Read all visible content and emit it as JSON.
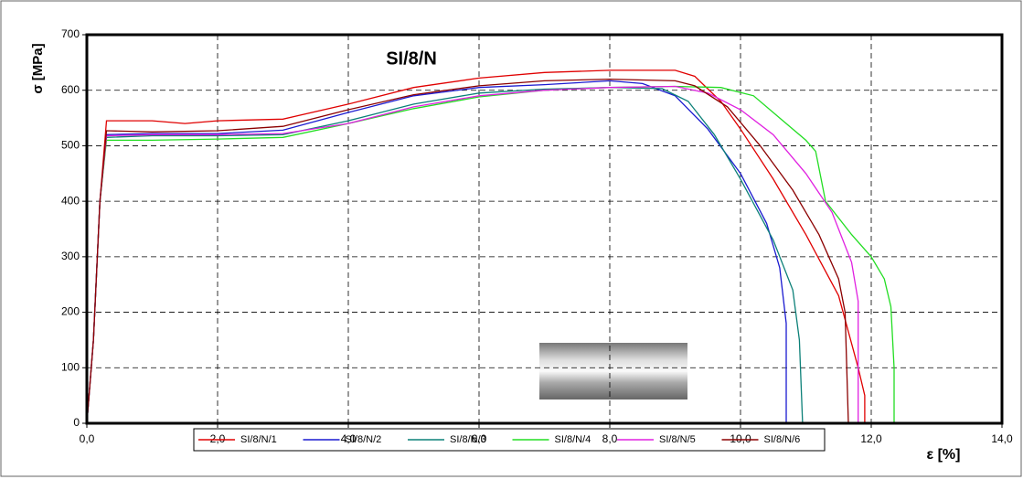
{
  "chart_data": {
    "type": "line",
    "title": "SI/8/N",
    "x_label": "ε [%]",
    "y_label": "σ [MPa]",
    "xlim": [
      0,
      14
    ],
    "ylim": [
      0,
      700
    ],
    "grid": true,
    "legend": "bottom",
    "xticks": [
      {
        "value": 0,
        "label": "0,0"
      },
      {
        "value": 2,
        "label": "2,0"
      },
      {
        "value": 4,
        "label": "4,0"
      },
      {
        "value": 6,
        "label": "6,0"
      },
      {
        "value": 8,
        "label": "8,0"
      },
      {
        "value": 10,
        "label": "10,0"
      },
      {
        "value": 12,
        "label": "12,0"
      },
      {
        "value": 14,
        "label": "14,0"
      }
    ],
    "yticks": [
      0,
      100,
      200,
      300,
      400,
      500,
      600,
      700
    ],
    "series": [
      {
        "name": "SI/8/N/1",
        "color": "#e00000",
        "x": [
          0,
          0.1,
          0.2,
          0.3,
          0.5,
          1,
          1.5,
          2,
          3,
          4,
          5,
          6,
          7,
          8,
          9,
          9.3,
          9.7,
          10,
          10.5,
          11,
          11.5,
          11.8,
          11.9,
          11.9
        ],
        "values": [
          0,
          150,
          400,
          545,
          545,
          545,
          540,
          545,
          548,
          575,
          605,
          622,
          632,
          636,
          636,
          625,
          580,
          530,
          440,
          340,
          230,
          100,
          50,
          0
        ]
      },
      {
        "name": "SI/8/N/2",
        "color": "#1a1ad0",
        "x": [
          0,
          0.1,
          0.2,
          0.3,
          1,
          2,
          3,
          4,
          5,
          6,
          7,
          8,
          8.5,
          9,
          9.5,
          10,
          10.4,
          10.6,
          10.7,
          10.7
        ],
        "values": [
          0,
          150,
          400,
          520,
          522,
          522,
          528,
          560,
          590,
          605,
          610,
          617,
          612,
          590,
          530,
          450,
          360,
          280,
          180,
          0
        ]
      },
      {
        "name": "SI/8/N/3",
        "color": "#0c8078",
        "x": [
          0,
          0.1,
          0.2,
          0.3,
          1,
          2,
          3,
          4,
          5,
          6,
          7,
          8,
          8.8,
          9.2,
          9.6,
          10,
          10.5,
          10.8,
          10.9,
          10.95
        ],
        "values": [
          0,
          150,
          400,
          515,
          518,
          518,
          520,
          545,
          575,
          595,
          602,
          605,
          603,
          580,
          520,
          440,
          330,
          240,
          150,
          0
        ]
      },
      {
        "name": "SI/8/N/4",
        "color": "#22dd22",
        "x": [
          0,
          0.1,
          0.2,
          0.3,
          1,
          2,
          3,
          4,
          5,
          6,
          7,
          8,
          9,
          9.7,
          10.2,
          10.6,
          11,
          11.15,
          11.3,
          11.7,
          12,
          12.2,
          12.3,
          12.35,
          12.35
        ],
        "values": [
          0,
          150,
          400,
          510,
          510,
          512,
          515,
          540,
          567,
          588,
          600,
          605,
          607,
          605,
          590,
          550,
          510,
          490,
          400,
          340,
          300,
          260,
          210,
          100,
          0
        ]
      },
      {
        "name": "SI/8/N/5",
        "color": "#e020e0",
        "x": [
          0,
          0.1,
          0.2,
          0.3,
          1,
          2,
          3,
          4,
          5,
          6,
          7,
          8,
          9,
          9.5,
          10,
          10.5,
          11,
          11.4,
          11.7,
          11.8,
          11.8
        ],
        "values": [
          0,
          150,
          400,
          518,
          520,
          520,
          522,
          540,
          570,
          590,
          600,
          605,
          607,
          595,
          565,
          520,
          450,
          380,
          290,
          220,
          0
        ]
      },
      {
        "name": "SI/8/N/6",
        "color": "#8b0000",
        "x": [
          0,
          0.1,
          0.2,
          0.3,
          1,
          2,
          3,
          4,
          5,
          6,
          7,
          8,
          9,
          9.3,
          9.8,
          10.3,
          10.8,
          11.2,
          11.5,
          11.6,
          11.65
        ],
        "values": [
          0,
          150,
          400,
          527,
          525,
          527,
          535,
          565,
          592,
          608,
          617,
          620,
          617,
          608,
          570,
          500,
          420,
          340,
          260,
          200,
          0
        ]
      }
    ]
  }
}
